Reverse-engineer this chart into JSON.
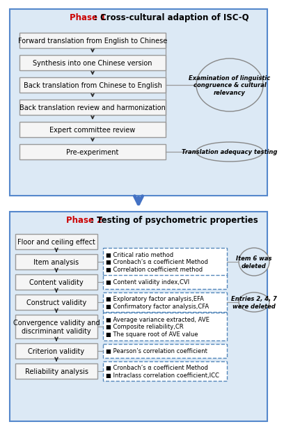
{
  "phase1_title_red": "Phase 1",
  "phase1_title_black": ": Cross-cultural adaption of ISC-Q",
  "phase1_boxes": [
    "Forward translation from English to Chinese",
    "Synthesis into one Chinese version",
    "Back translation from Chinese to English",
    "Back translation review and harmonization",
    "Expert committee review",
    "Pre-experiment"
  ],
  "phase1_ellipse1": "Examination of linguistic\ncongruence & cultural\nrelevancy",
  "phase1_ellipse2": "Translation adequacy testing",
  "phase2_title_red": "Phase 2",
  "phase2_title_black": ": Testing of psychometric properties",
  "phase2_boxes": [
    "Floor and ceiling effect",
    "Item analysis",
    "Content validity",
    "Construct validity",
    "Convergence validity and\ndiscriminant validity",
    "Criterion validity",
    "Reliability analysis"
  ],
  "phase2_detail_boxes": [
    null,
    "■ Critical ratio method\n■ Cronbach’s α coefficient Method\n■ Correlation coefficient method",
    "■ Content validity index,CVI",
    "■ Exploratory factor analysis,EFA\n■ Confirmatory factor analysis,CFA",
    "■ Average variance extracted, AVE\n■ Composite reliability,CR\n■ The square root of AVE value",
    "■ Pearson’s correlation coefficient",
    "■ Cronbach’s α coefficient Method\n■ Intraclass correlation coefficient,ICC"
  ],
  "phase2_ellipse1": "Item 6 was\ndeleted",
  "phase2_ellipse2": "Entries 2, 4, 7\nwere deleted",
  "bg_color": "#dce9f5",
  "bg_border": "#5588cc",
  "box_fill": "#f5f5f5",
  "box_edge": "#999999",
  "detail_box_edge": "#5588bb",
  "big_arrow_color": "#4472c4",
  "small_arrow_color": "#333333",
  "ellipse_fill": "#dce9f5",
  "ellipse_edge": "#888888",
  "title_red": "#cc0000",
  "title_black": "#000000",
  "font_size_title": 8.5,
  "font_size_box": 7,
  "font_size_detail": 6,
  "font_size_ellipse": 6
}
